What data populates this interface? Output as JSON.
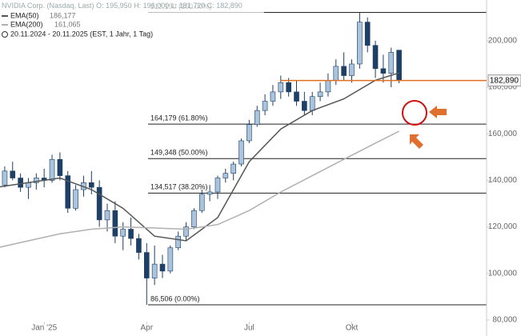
{
  "chart_data": {
    "type": "candlestick",
    "header": "NVIDIA Corp. (Nasdaq, Last)",
    "ohlc_labels": [
      "O: 195,950",
      "H: 196,000",
      "L: 181,720",
      "C: 182,890"
    ],
    "period": "20.11.2024 - 20.11.2025 (EST, 1 Jahr, 1 Tag)",
    "up_color": "#a9c4dc",
    "down_color": "#1e3f66",
    "x": [
      0,
      1,
      2,
      3,
      4,
      5,
      6,
      7,
      8,
      9,
      10,
      11,
      12,
      13,
      14,
      15,
      16,
      17,
      18,
      19,
      20,
      21,
      22,
      23,
      24,
      25,
      26,
      27,
      28,
      29,
      30,
      31,
      32,
      33,
      34,
      35,
      36,
      37,
      38,
      39,
      40,
      41,
      42,
      43,
      44,
      45,
      46,
      47,
      48,
      49,
      50,
      51
    ],
    "open": [
      140000,
      138000,
      144000,
      141000,
      137000,
      139000,
      141000,
      140000,
      149000,
      142000,
      128000,
      136000,
      139000,
      137000,
      123000,
      127000,
      116000,
      119000,
      115000,
      109000,
      98000,
      104000,
      101000,
      111000,
      116000,
      120000,
      127000,
      134000,
      135000,
      141000,
      143000,
      147000,
      157000,
      164000,
      170000,
      174000,
      178000,
      182000,
      178000,
      174000,
      170000,
      176000,
      178000,
      183000,
      189000,
      185000,
      190000,
      208000,
      198000,
      188000,
      186000,
      195950
    ],
    "high": [
      142000,
      146000,
      148000,
      143000,
      141000,
      143000,
      145000,
      151000,
      152000,
      144000,
      138000,
      142000,
      144000,
      140000,
      130000,
      131000,
      122000,
      124000,
      117000,
      113000,
      112000,
      108000,
      112000,
      118000,
      122000,
      128000,
      136000,
      138000,
      142000,
      145000,
      148000,
      158000,
      166000,
      172000,
      177000,
      181000,
      185000,
      184000,
      183000,
      178000,
      178000,
      182000,
      186000,
      192000,
      195000,
      192000,
      212190,
      210000,
      200000,
      194000,
      197000,
      196000
    ],
    "low": [
      135000,
      137000,
      140000,
      135000,
      132000,
      136000,
      137000,
      139000,
      140000,
      126000,
      127000,
      133000,
      134000,
      120000,
      118000,
      113000,
      110000,
      112000,
      106000,
      86506,
      95000,
      98000,
      100000,
      110000,
      114000,
      119000,
      126000,
      131000,
      132000,
      139000,
      140000,
      146000,
      156000,
      163000,
      168000,
      172000,
      175000,
      176000,
      172000,
      168000,
      168000,
      174000,
      176000,
      181000,
      183000,
      182000,
      188000,
      195000,
      184000,
      182000,
      180000,
      181720
    ],
    "close": [
      138000,
      144000,
      141000,
      137000,
      139000,
      141000,
      140000,
      149000,
      142000,
      128000,
      136000,
      139000,
      137000,
      123000,
      127000,
      116000,
      119000,
      115000,
      109000,
      98000,
      104000,
      101000,
      111000,
      116000,
      120000,
      127000,
      134000,
      135000,
      141000,
      143000,
      147000,
      157000,
      164000,
      170000,
      174000,
      178000,
      182000,
      178000,
      174000,
      170000,
      176000,
      178000,
      183000,
      189000,
      185000,
      190000,
      208000,
      198000,
      188000,
      186000,
      195000,
      182890
    ],
    "lines": [
      {
        "name": "EMA(50)",
        "legend_value": "186,177",
        "color": "#555555",
        "x": [
          0,
          4,
          8,
          12,
          16,
          20,
          24,
          28,
          32,
          36,
          40,
          44,
          48,
          51
        ],
        "values": [
          137000,
          139000,
          141000,
          136000,
          128000,
          116000,
          114000,
          124000,
          148000,
          162000,
          170000,
          175000,
          183000,
          186177
        ]
      },
      {
        "name": "EMA(200)",
        "legend_value": "161,065",
        "color": "#b0b0b0",
        "x": [
          0,
          4,
          8,
          12,
          16,
          20,
          24,
          28,
          32,
          36,
          40,
          44,
          48,
          51
        ],
        "values": [
          111000,
          114000,
          117000,
          119000,
          120000,
          119500,
          119000,
          121000,
          127000,
          135000,
          142000,
          149000,
          156000,
          161065
        ]
      }
    ],
    "fib_levels": [
      {
        "value": 212190,
        "label": "212,190 (100.00%)"
      },
      {
        "value": 164179,
        "label": "164,179 (61.80%)"
      },
      {
        "value": 149348,
        "label": "149,348 (50.00%)"
      },
      {
        "value": 134517,
        "label": "134,517 (38.20%)"
      },
      {
        "value": 86506,
        "label": "86,506 (0.00%)"
      }
    ],
    "last_price": {
      "value": 182890,
      "label": "182,890"
    },
    "last_price_color": "#e07020",
    "xlim": [
      0.4,
      62.1
    ],
    "ylim": [
      73100,
      217500
    ],
    "xticks": [
      {
        "value": 6,
        "label": "Jan '25"
      },
      {
        "value": 19,
        "label": "Apr"
      },
      {
        "value": 32,
        "label": "Jul"
      },
      {
        "value": 45,
        "label": "Okt"
      }
    ],
    "yticks": [
      {
        "value": 80000,
        "label": "80,000"
      },
      {
        "value": 100000,
        "label": "100,000"
      },
      {
        "value": 120000,
        "label": "120,000"
      },
      {
        "value": 140000,
        "label": "140,000"
      },
      {
        "value": 160000,
        "label": "160,000"
      },
      {
        "value": 180000,
        "label": "180,000"
      },
      {
        "value": 200000,
        "label": "200,000"
      }
    ]
  }
}
